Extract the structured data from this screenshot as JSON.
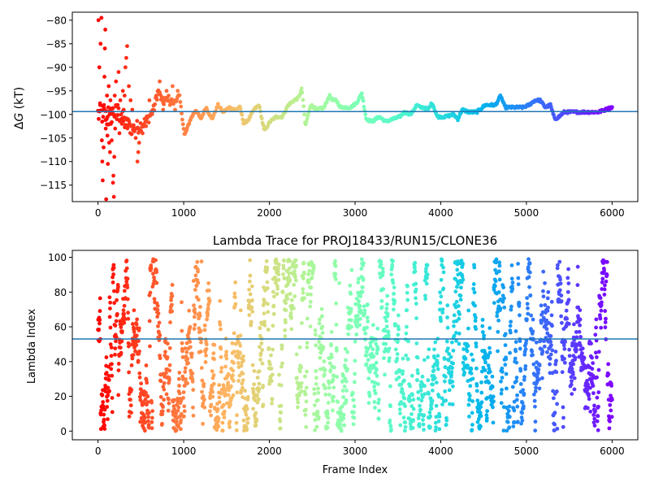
{
  "chart_data": [
    {
      "type": "scatter",
      "title": "",
      "xlabel": "",
      "ylabel": "ΔG (kT)",
      "ylabel_symbol": "Δ",
      "ylabel_var": "G",
      "ylabel_unit": " (kT)",
      "xlim": [
        -300,
        6300
      ],
      "ylim": [
        -118.5,
        -78.3
      ],
      "xticks": [
        0,
        1000,
        2000,
        3000,
        4000,
        5000,
        6000
      ],
      "xtick_labels": [
        "0",
        "1000",
        "2000",
        "3000",
        "4000",
        "5000",
        "6000"
      ],
      "yticks": [
        -115,
        -110,
        -105,
        -100,
        -95,
        -90,
        -85,
        -80
      ],
      "ytick_labels": [
        "−115",
        "−110",
        "−105",
        "−100",
        "−95",
        "−90",
        "−85",
        "−80"
      ],
      "reference_line_y": -99.4,
      "colormap": "rainbow (red at frame 0 to violet at frame 6000)",
      "trace_x": [
        0,
        60,
        120,
        180,
        250,
        320,
        400,
        480,
        560,
        650,
        700,
        760,
        820,
        880,
        950,
        1010,
        1080,
        1140,
        1200,
        1260,
        1330,
        1400,
        1460,
        1530,
        1600,
        1660,
        1700,
        1760,
        1820,
        1880,
        1940,
        2010,
        2080,
        2150,
        2220,
        2290,
        2340,
        2380,
        2420,
        2480,
        2560,
        2640,
        2700,
        2740,
        2780,
        2830,
        2880,
        2950,
        3020,
        3080,
        3130,
        3200,
        3280,
        3360,
        3440,
        3520,
        3580,
        3650,
        3720,
        3760,
        3800,
        3850,
        3900,
        3960,
        4050,
        4150,
        4200,
        4250,
        4330,
        4420,
        4520,
        4580,
        4640,
        4700,
        4750,
        4800,
        4880,
        4960,
        5030,
        5100,
        5160,
        5220,
        5280,
        5330,
        5380,
        5440,
        5520,
        5600,
        5680,
        5760,
        5840,
        5920,
        5990
      ],
      "trace_y": [
        -100,
        -100,
        -101,
        -99.5,
        -100,
        -102,
        -103,
        -102.5,
        -101.5,
        -99,
        -95,
        -97.5,
        -96.5,
        -97.5,
        -96,
        -104.5,
        -101,
        -99,
        -101,
        -98.5,
        -101,
        -98,
        -99.5,
        -98.5,
        -99,
        -98.5,
        -102,
        -101,
        -99,
        -98,
        -103.5,
        -101.5,
        -100.5,
        -100.5,
        -98,
        -97,
        -96.5,
        -94.5,
        -102.5,
        -98,
        -99,
        -98.5,
        -96,
        -97,
        -97,
        -98.5,
        -98.5,
        -98.5,
        -97.5,
        -95.5,
        -101,
        -101.5,
        -100.5,
        -101.5,
        -101,
        -100.5,
        -99.5,
        -100,
        -98,
        -98.5,
        -98.5,
        -99,
        -97.5,
        -100.5,
        -100.5,
        -100,
        -101,
        -99,
        -99.5,
        -99.5,
        -98,
        -98,
        -98,
        -96,
        -98.5,
        -98.5,
        -98.5,
        -98.5,
        -98,
        -97,
        -97,
        -98.5,
        -98,
        -101,
        -100.5,
        -99.5,
        -99.5,
        -99.5,
        -99.5,
        -99.5,
        -99.5,
        -99,
        -98.5
      ],
      "early_scatter": [
        {
          "x": 5,
          "y": -80
        },
        {
          "x": 15,
          "y": -90
        },
        {
          "x": 25,
          "y": -98
        },
        {
          "x": 30,
          "y": -85
        },
        {
          "x": 40,
          "y": -79.5
        },
        {
          "x": 45,
          "y": -105.5
        },
        {
          "x": 50,
          "y": -110
        },
        {
          "x": 55,
          "y": -114
        },
        {
          "x": 60,
          "y": -100.5
        },
        {
          "x": 65,
          "y": -107
        },
        {
          "x": 70,
          "y": -98
        },
        {
          "x": 75,
          "y": -92
        },
        {
          "x": 80,
          "y": -86
        },
        {
          "x": 85,
          "y": -82
        },
        {
          "x": 90,
          "y": -103
        },
        {
          "x": 95,
          "y": -118
        },
        {
          "x": 100,
          "y": -101
        },
        {
          "x": 105,
          "y": -96
        },
        {
          "x": 110,
          "y": -104.5
        },
        {
          "x": 115,
          "y": -110.5
        },
        {
          "x": 120,
          "y": -98.5
        },
        {
          "x": 125,
          "y": -94
        },
        {
          "x": 130,
          "y": -106
        },
        {
          "x": 135,
          "y": -100
        },
        {
          "x": 140,
          "y": -108
        },
        {
          "x": 145,
          "y": -97
        },
        {
          "x": 150,
          "y": -102
        },
        {
          "x": 160,
          "y": -105.5
        },
        {
          "x": 170,
          "y": -99.5
        },
        {
          "x": 175,
          "y": -114.5
        },
        {
          "x": 180,
          "y": -113
        },
        {
          "x": 185,
          "y": -117.5
        },
        {
          "x": 190,
          "y": -109
        },
        {
          "x": 195,
          "y": -96
        },
        {
          "x": 200,
          "y": -103
        },
        {
          "x": 210,
          "y": -93
        },
        {
          "x": 220,
          "y": -101
        },
        {
          "x": 230,
          "y": -98
        },
        {
          "x": 240,
          "y": -91
        },
        {
          "x": 250,
          "y": -104
        },
        {
          "x": 260,
          "y": -97
        },
        {
          "x": 270,
          "y": -100
        },
        {
          "x": 280,
          "y": -102
        },
        {
          "x": 290,
          "y": -95
        },
        {
          "x": 300,
          "y": -99
        },
        {
          "x": 310,
          "y": -96
        },
        {
          "x": 320,
          "y": -90
        },
        {
          "x": 330,
          "y": -88
        },
        {
          "x": 340,
          "y": -85.5
        },
        {
          "x": 350,
          "y": -101
        },
        {
          "x": 360,
          "y": -94
        },
        {
          "x": 380,
          "y": -97
        },
        {
          "x": 400,
          "y": -99
        },
        {
          "x": 420,
          "y": -103
        },
        {
          "x": 440,
          "y": -105
        },
        {
          "x": 460,
          "y": -110
        },
        {
          "x": 470,
          "y": -108
        },
        {
          "x": 480,
          "y": -106
        },
        {
          "x": 520,
          "y": -104
        },
        {
          "x": 560,
          "y": -102.5
        },
        {
          "x": 600,
          "y": -97
        },
        {
          "x": 640,
          "y": -99
        },
        {
          "x": 680,
          "y": -96
        },
        {
          "x": 720,
          "y": -93
        },
        {
          "x": 760,
          "y": -99
        },
        {
          "x": 800,
          "y": -95
        },
        {
          "x": 840,
          "y": -98
        },
        {
          "x": 870,
          "y": -94
        },
        {
          "x": 900,
          "y": -99
        },
        {
          "x": 930,
          "y": -95
        }
      ]
    },
    {
      "type": "scatter",
      "title": "Lambda Trace for PROJ18433/RUN15/CLONE36",
      "xlabel": "Frame Index",
      "ylabel": "Lambda Index",
      "xlim": [
        -300,
        6300
      ],
      "ylim": [
        -5,
        104
      ],
      "xticks": [
        0,
        1000,
        2000,
        3000,
        4000,
        5000,
        6000
      ],
      "xtick_labels": [
        "0",
        "1000",
        "2000",
        "3000",
        "4000",
        "5000",
        "6000"
      ],
      "yticks": [
        0,
        20,
        40,
        60,
        80,
        100
      ],
      "ytick_labels": [
        "0",
        "20",
        "40",
        "60",
        "80",
        "100"
      ],
      "reference_line_y": 53,
      "colormap": "rainbow (red at frame 0 to violet at frame 6000)",
      "frames": 6000,
      "lambda_range": [
        0,
        99
      ],
      "density_points": 2400
    }
  ]
}
